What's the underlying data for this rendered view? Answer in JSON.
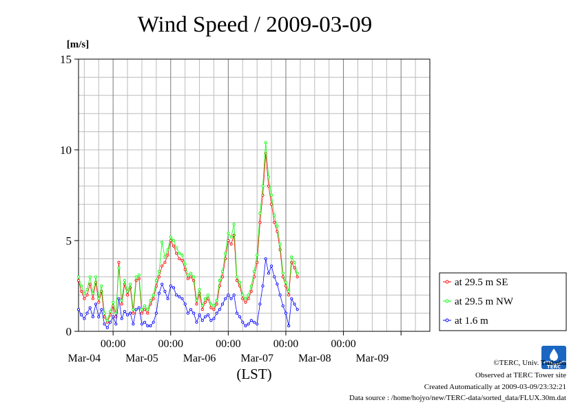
{
  "chart_data": {
    "type": "line",
    "title": "Wind Speed / 2009-03-09",
    "ylabel": "[m/s]",
    "xlabel": "(LST)",
    "ylim": [
      0,
      15
    ],
    "yticks": [
      0,
      5,
      10,
      15
    ],
    "xlim_days": [
      3.4,
      9.5
    ],
    "x_time_labels": [
      "00:00",
      "00:00",
      "00:00",
      "00:00",
      "00:00"
    ],
    "x_date_labels": [
      "Mar-04",
      "Mar-05",
      "Mar-06",
      "Mar-07",
      "Mar-08",
      "Mar-09"
    ],
    "grid": true,
    "legend_position": "right",
    "series": [
      {
        "name": "at 29.5 m SE",
        "color": "#ff0000",
        "x": [
          3.4,
          3.45,
          3.5,
          3.55,
          3.6,
          3.65,
          3.7,
          3.75,
          3.8,
          3.85,
          3.9,
          3.95,
          4.0,
          4.05,
          4.1,
          4.15,
          4.2,
          4.25,
          4.3,
          4.35,
          4.4,
          4.45,
          4.5,
          4.55,
          4.6,
          4.65,
          4.7,
          4.75,
          4.8,
          4.85,
          4.9,
          4.95,
          5.0,
          5.05,
          5.1,
          5.15,
          5.2,
          5.25,
          5.3,
          5.35,
          5.4,
          5.45,
          5.5,
          5.55,
          5.6,
          5.65,
          5.7,
          5.75,
          5.8,
          5.85,
          5.9,
          5.95,
          6.0,
          6.05,
          6.1,
          6.15,
          6.2,
          6.25,
          6.3,
          6.35,
          6.4,
          6.45,
          6.5,
          6.55,
          6.6,
          6.65,
          6.7,
          6.75,
          6.8,
          6.85,
          6.9,
          6.95,
          7.0,
          7.05,
          7.1,
          7.15,
          7.2
        ],
        "y": [
          2.8,
          2.2,
          1.8,
          2.0,
          2.6,
          1.8,
          2.7,
          1.6,
          2.2,
          0.8,
          0.5,
          0.9,
          1.4,
          0.8,
          3.8,
          1.5,
          2.6,
          2.0,
          2.4,
          1.0,
          2.8,
          2.9,
          1.0,
          1.2,
          1.0,
          1.5,
          1.8,
          2.5,
          3.0,
          3.6,
          3.8,
          4.2,
          5.0,
          4.7,
          4.3,
          4.0,
          3.9,
          3.4,
          2.9,
          3.0,
          2.8,
          1.5,
          2.1,
          1.2,
          1.6,
          1.8,
          1.3,
          1.2,
          1.5,
          2.5,
          3.0,
          4.0,
          5.0,
          4.8,
          5.3,
          2.8,
          2.5,
          1.8,
          1.6,
          1.8,
          2.2,
          3.0,
          3.8,
          6.0,
          7.5,
          9.8,
          8.0,
          7.0,
          6.0,
          5.5,
          4.5,
          3.0,
          2.5,
          2.0,
          3.8,
          3.5,
          3.0
        ]
      },
      {
        "name": "at 29.5 m NW",
        "color": "#00ff00",
        "x": [
          3.4,
          3.45,
          3.5,
          3.55,
          3.6,
          3.65,
          3.7,
          3.75,
          3.8,
          3.85,
          3.9,
          3.95,
          4.0,
          4.05,
          4.1,
          4.15,
          4.2,
          4.25,
          4.3,
          4.35,
          4.4,
          4.45,
          4.5,
          4.55,
          4.6,
          4.65,
          4.7,
          4.75,
          4.8,
          4.85,
          4.9,
          4.95,
          5.0,
          5.05,
          5.1,
          5.15,
          5.2,
          5.25,
          5.3,
          5.35,
          5.4,
          5.45,
          5.5,
          5.55,
          5.6,
          5.65,
          5.7,
          5.75,
          5.8,
          5.85,
          5.9,
          5.95,
          6.0,
          6.05,
          6.1,
          6.15,
          6.2,
          6.25,
          6.3,
          6.35,
          6.4,
          6.45,
          6.5,
          6.55,
          6.6,
          6.65,
          6.7,
          6.75,
          6.8,
          6.85,
          6.9,
          6.95,
          7.0,
          7.05,
          7.1,
          7.15,
          7.2
        ],
        "y": [
          3.0,
          2.5,
          2.1,
          2.3,
          3.0,
          2.1,
          3.0,
          1.8,
          2.5,
          1.0,
          0.6,
          1.1,
          1.6,
          1.0,
          3.5,
          1.7,
          2.8,
          2.2,
          2.6,
          1.2,
          3.0,
          3.1,
          1.2,
          1.4,
          1.2,
          1.7,
          2.0,
          2.8,
          3.3,
          4.9,
          4.1,
          4.5,
          5.2,
          5.0,
          4.6,
          4.3,
          4.2,
          3.7,
          3.1,
          3.2,
          3.0,
          1.7,
          2.3,
          1.4,
          1.8,
          2.0,
          1.5,
          1.4,
          1.7,
          2.8,
          3.3,
          4.3,
          5.4,
          5.2,
          5.9,
          3.0,
          2.7,
          2.0,
          1.8,
          2.0,
          2.5,
          3.3,
          4.2,
          6.5,
          8.0,
          10.4,
          8.5,
          7.5,
          6.4,
          5.8,
          4.8,
          3.2,
          2.7,
          2.2,
          4.1,
          3.8,
          3.2
        ]
      },
      {
        "name": "at 1.6 m",
        "color": "#0000ff",
        "x": [
          3.4,
          3.45,
          3.5,
          3.55,
          3.6,
          3.65,
          3.7,
          3.75,
          3.8,
          3.85,
          3.9,
          3.95,
          4.0,
          4.05,
          4.1,
          4.15,
          4.2,
          4.25,
          4.3,
          4.35,
          4.4,
          4.45,
          4.5,
          4.55,
          4.6,
          4.65,
          4.7,
          4.75,
          4.8,
          4.85,
          4.9,
          4.95,
          5.0,
          5.05,
          5.1,
          5.15,
          5.2,
          5.25,
          5.3,
          5.35,
          5.4,
          5.45,
          5.5,
          5.55,
          5.6,
          5.65,
          5.7,
          5.75,
          5.8,
          5.85,
          5.9,
          5.95,
          6.0,
          6.05,
          6.1,
          6.15,
          6.2,
          6.25,
          6.3,
          6.35,
          6.4,
          6.45,
          6.5,
          6.55,
          6.6,
          6.65,
          6.7,
          6.75,
          6.8,
          6.85,
          6.9,
          6.95,
          7.0,
          7.05,
          7.1,
          7.15,
          7.2
        ],
        "y": [
          1.2,
          0.9,
          0.7,
          1.0,
          1.3,
          0.8,
          1.5,
          0.8,
          1.2,
          0.4,
          0.2,
          0.5,
          0.8,
          0.4,
          1.8,
          0.7,
          1.1,
          0.9,
          1.0,
          0.4,
          1.2,
          1.3,
          0.4,
          0.5,
          0.3,
          0.3,
          0.5,
          1.0,
          2.1,
          2.6,
          2.2,
          1.8,
          2.5,
          2.4,
          2.0,
          1.9,
          1.8,
          1.5,
          1.0,
          1.2,
          1.0,
          0.5,
          0.9,
          0.6,
          0.8,
          0.9,
          0.6,
          0.7,
          1.0,
          1.2,
          1.5,
          1.8,
          2.0,
          1.8,
          2.0,
          1.0,
          0.8,
          0.5,
          0.3,
          0.4,
          0.6,
          0.5,
          0.4,
          1.5,
          2.5,
          4.0,
          3.2,
          3.6,
          3.0,
          2.6,
          2.0,
          1.4,
          1.0,
          0.3,
          1.8,
          1.5,
          1.2
        ]
      }
    ]
  },
  "footer": {
    "copyright": "©TERC, Univ. Tsukuba",
    "observed": "Observed at TERC Tower site",
    "created": "Created Automatically at 2009-03-09/23:32:21",
    "source": "Data source : /home/hojyo/new/TERC-data/sorted_data/FLUX.30m.dat",
    "logo_text": "TERC"
  },
  "colors": {
    "logo": "#1a66c2"
  }
}
